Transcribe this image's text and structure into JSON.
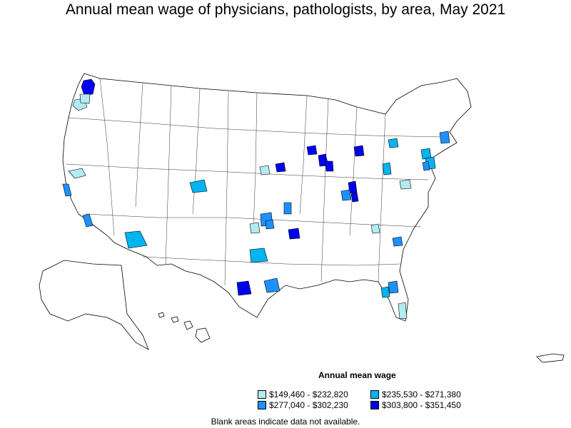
{
  "title": "Annual mean wage of physicians, pathologists, by area, May 2021",
  "legend": {
    "title": "Annual mean wage",
    "items": [
      {
        "label": "$149,460 - $232,820",
        "color": "#b2ebf2"
      },
      {
        "label": "$277,040 - $302,230",
        "color": "#1e90ff"
      },
      {
        "label": "$235,530 - $271,380",
        "color": "#00b4f0"
      },
      {
        "label": "$303,800 - $351,450",
        "color": "#0000ee"
      }
    ]
  },
  "footnote": "Blank areas indicate data not available.",
  "colors": {
    "outline": "#000000",
    "blank": "#ffffff"
  },
  "regions": [
    {
      "name": "seattle",
      "tier": 3
    },
    {
      "name": "portland-or",
      "tier": 0
    },
    {
      "name": "eugene-or",
      "tier": 0
    },
    {
      "name": "sacramento-sf",
      "tier": 0
    },
    {
      "name": "san-jose",
      "tier": 1
    },
    {
      "name": "los-angeles",
      "tier": 1
    },
    {
      "name": "phoenix",
      "tier": 2
    },
    {
      "name": "denver",
      "tier": 2
    },
    {
      "name": "omaha",
      "tier": 0
    },
    {
      "name": "des-moines",
      "tier": 3
    },
    {
      "name": "wichita",
      "tier": 1
    },
    {
      "name": "kansas-city",
      "tier": 1
    },
    {
      "name": "oklahoma-city",
      "tier": 0
    },
    {
      "name": "tulsa",
      "tier": 1
    },
    {
      "name": "little-rock",
      "tier": 3
    },
    {
      "name": "dallas",
      "tier": 2
    },
    {
      "name": "san-antonio",
      "tier": 3
    },
    {
      "name": "houston",
      "tier": 1
    },
    {
      "name": "minneapolis",
      "tier": 3
    },
    {
      "name": "milwaukee",
      "tier": 3
    },
    {
      "name": "chicago",
      "tier": 3
    },
    {
      "name": "detroit",
      "tier": 3
    },
    {
      "name": "indianapolis",
      "tier": 3
    },
    {
      "name": "louisville",
      "tier": 1
    },
    {
      "name": "cincinnati",
      "tier": 3
    },
    {
      "name": "pittsburgh",
      "tier": 2
    },
    {
      "name": "buffalo",
      "tier": 2
    },
    {
      "name": "albany",
      "tier": 2
    },
    {
      "name": "boston",
      "tier": 1
    },
    {
      "name": "new-york",
      "tier": 2
    },
    {
      "name": "philadelphia",
      "tier": 1
    },
    {
      "name": "raleigh",
      "tier": 0
    },
    {
      "name": "charlotte",
      "tier": 0
    },
    {
      "name": "charleston",
      "tier": 1
    },
    {
      "name": "tampa",
      "tier": 2
    },
    {
      "name": "orlando",
      "tier": 1
    },
    {
      "name": "miami",
      "tier": 0
    }
  ]
}
